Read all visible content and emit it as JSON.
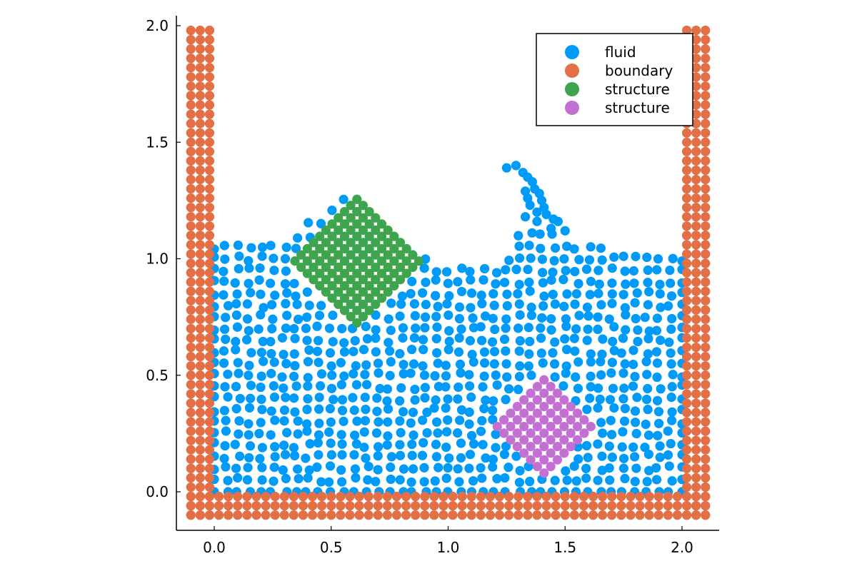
{
  "chart_data": {
    "type": "scatter",
    "title": "",
    "xlabel": "",
    "ylabel": "",
    "xlim": [
      -0.17,
      2.17
    ],
    "ylim": [
      -0.165,
      2.04
    ],
    "aspect": "equal",
    "grid": false,
    "legend_position": "top-right",
    "x_ticks": [
      0.0,
      0.5,
      1.0,
      1.5,
      2.0
    ],
    "x_tick_labels": [
      "0.0",
      "0.5",
      "1.0",
      "1.5",
      "2.0"
    ],
    "y_ticks": [
      0.0,
      0.5,
      1.0,
      1.5,
      2.0
    ],
    "y_tick_labels": [
      "0.0",
      "0.5",
      "1.0",
      "1.5",
      "2.0"
    ],
    "particle_spacing": 0.05,
    "series": [
      {
        "name": "fluid",
        "color": "#009AF9",
        "distribution": "particles filling the tank, surface heaving between y≈0.9 and y≈1.28, with a breaking crest near x≈1.3",
        "region_x": [
          0.0,
          2.0
        ],
        "region_y": [
          0.0,
          1.28
        ],
        "surface_profile": [
          [
            0.0,
            1.05
          ],
          [
            0.1,
            1.07
          ],
          [
            0.2,
            1.06
          ],
          [
            0.3,
            1.1
          ],
          [
            0.4,
            1.17
          ],
          [
            0.5,
            1.22
          ],
          [
            0.55,
            1.27
          ],
          [
            0.6,
            1.27
          ],
          [
            0.7,
            1.17
          ],
          [
            0.8,
            1.05
          ],
          [
            0.9,
            1.0
          ],
          [
            1.0,
            0.98
          ],
          [
            1.1,
            0.95
          ],
          [
            1.2,
            1.0
          ],
          [
            1.3,
            1.1
          ],
          [
            1.4,
            1.15
          ],
          [
            1.5,
            1.1
          ],
          [
            1.6,
            1.06
          ],
          [
            1.7,
            1.04
          ],
          [
            1.8,
            1.02
          ],
          [
            1.9,
            1.01
          ],
          [
            2.0,
            1.0
          ]
        ],
        "jet_points": [
          [
            1.25,
            1.39
          ],
          [
            1.29,
            1.4
          ],
          [
            1.32,
            1.37
          ],
          [
            1.34,
            1.35
          ],
          [
            1.36,
            1.33
          ],
          [
            1.37,
            1.3
          ],
          [
            1.39,
            1.28
          ],
          [
            1.4,
            1.25
          ],
          [
            1.41,
            1.22
          ],
          [
            1.42,
            1.19
          ],
          [
            1.38,
            1.2
          ],
          [
            1.34,
            1.26
          ],
          [
            1.35,
            1.23
          ],
          [
            1.33,
            1.29
          ],
          [
            1.45,
            1.17
          ],
          [
            1.47,
            1.16
          ],
          [
            1.44,
            1.13
          ],
          [
            1.5,
            1.12
          ],
          [
            1.38,
            1.16
          ],
          [
            1.33,
            1.18
          ]
        ]
      },
      {
        "name": "boundary",
        "color": "#E26F46",
        "distribution": "three-layer tank walls: left wall x∈{-0.1,-0.05,0.0}? (x −0.1 to −0.02), right wall x 2.02–2.1, floor y −0.1 to −0.02",
        "left_wall_x": [
          -0.1,
          -0.06,
          -0.02
        ],
        "right_wall_x": [
          2.02,
          2.06,
          2.1
        ],
        "wall_y_range": [
          -0.1,
          1.98
        ],
        "floor_y": [
          -0.1,
          -0.06,
          -0.02
        ],
        "floor_x_range": [
          -0.1,
          2.1
        ]
      },
      {
        "name": "structure",
        "color": "#3EA44E",
        "distribution": "square block rotated 45°",
        "center": [
          0.61,
          0.99
        ],
        "half_diagonal": 0.265,
        "grid_n": 11
      },
      {
        "name": "structure",
        "color": "#C271D2",
        "distribution": "square block rotated 45°",
        "center": [
          1.41,
          0.28
        ],
        "half_diagonal": 0.2,
        "grid_n": 8
      }
    ]
  }
}
